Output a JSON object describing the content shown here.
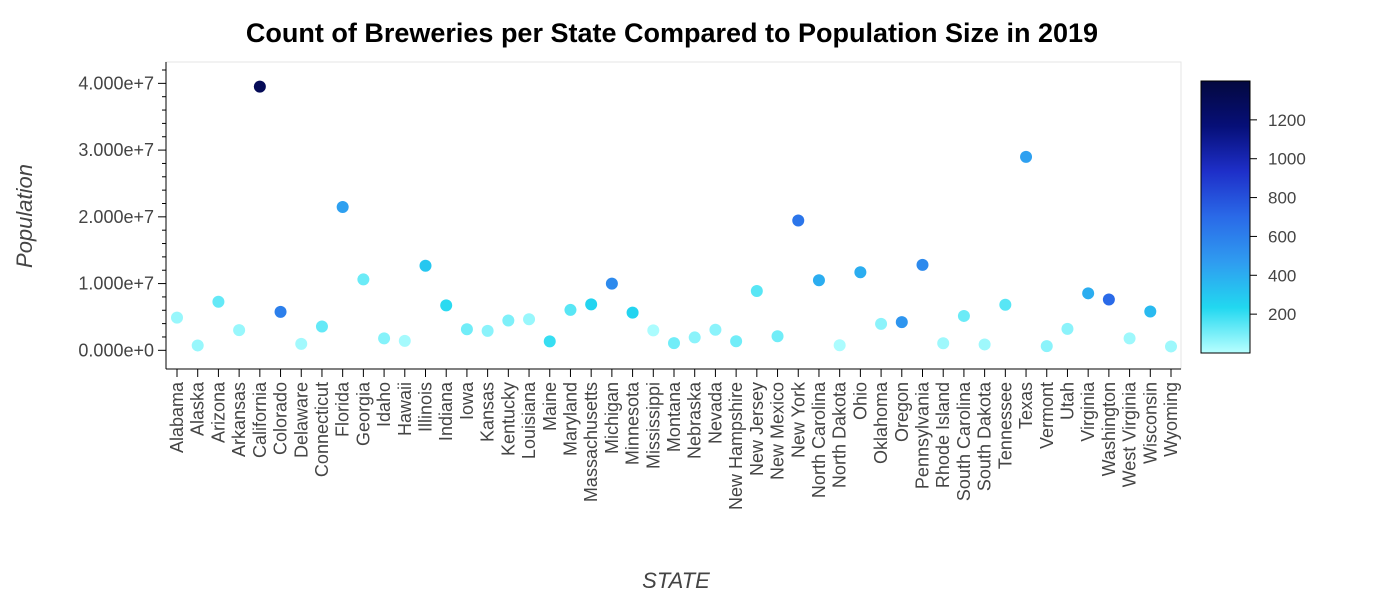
{
  "chart_data": {
    "type": "scatter",
    "title": "Count of Breweries per State Compared to Population Size in 2019",
    "xlabel": "STATE",
    "ylabel": "Population",
    "ylim": [
      -2800000,
      43200000
    ],
    "yticks": [
      "0.000e+0",
      "1.000e+7",
      "2.000e+7",
      "3.000e+7",
      "4.000e+7"
    ],
    "yticks_values": [
      0,
      10000000,
      20000000,
      30000000,
      40000000
    ],
    "colorbar": {
      "range": [
        0,
        1400
      ],
      "ticks": [
        "200",
        "400",
        "600",
        "800",
        "1000",
        "1200"
      ],
      "ticks_values": [
        200,
        400,
        600,
        800,
        1000,
        1200
      ],
      "colors": [
        "#b8ffff",
        "#22d8f0",
        "#2f9cf0",
        "#2a6ae8",
        "#1e2fc9",
        "#060f78",
        "#04083f"
      ]
    },
    "points": [
      {
        "state": "Alabama",
        "population": 4900000,
        "breweries": 50
      },
      {
        "state": "Alaska",
        "population": 730000,
        "breweries": 50
      },
      {
        "state": "Arizona",
        "population": 7280000,
        "breweries": 130
      },
      {
        "state": "Arkansas",
        "population": 3020000,
        "breweries": 50
      },
      {
        "state": "California",
        "population": 39510000,
        "breweries": 1300
      },
      {
        "state": "Colorado",
        "population": 5760000,
        "breweries": 600
      },
      {
        "state": "Delaware",
        "population": 970000,
        "breweries": 35
      },
      {
        "state": "Connecticut",
        "population": 3570000,
        "breweries": 130
      },
      {
        "state": "Florida",
        "population": 21480000,
        "breweries": 450
      },
      {
        "state": "Georgia",
        "population": 10620000,
        "breweries": 120
      },
      {
        "state": "Idaho",
        "population": 1790000,
        "breweries": 80
      },
      {
        "state": "Hawaii",
        "population": 1420000,
        "breweries": 30
      },
      {
        "state": "Illinois",
        "population": 12670000,
        "breweries": 300
      },
      {
        "state": "Indiana",
        "population": 6730000,
        "breweries": 220
      },
      {
        "state": "Iowa",
        "population": 3160000,
        "breweries": 110
      },
      {
        "state": "Kansas",
        "population": 2910000,
        "breweries": 70
      },
      {
        "state": "Kentucky",
        "population": 4470000,
        "breweries": 90
      },
      {
        "state": "Louisiana",
        "population": 4650000,
        "breweries": 50
      },
      {
        "state": "Maine",
        "population": 1340000,
        "breweries": 200
      },
      {
        "state": "Maryland",
        "population": 6050000,
        "breweries": 150
      },
      {
        "state": "Massachusetts",
        "population": 6890000,
        "breweries": 250
      },
      {
        "state": "Michigan",
        "population": 9990000,
        "breweries": 550
      },
      {
        "state": "Minnesota",
        "population": 5640000,
        "breweries": 250
      },
      {
        "state": "Mississippi",
        "population": 2980000,
        "breweries": 20
      },
      {
        "state": "Montana",
        "population": 1070000,
        "breweries": 110
      },
      {
        "state": "Nebraska",
        "population": 1930000,
        "breweries": 70
      },
      {
        "state": "Nevada",
        "population": 3080000,
        "breweries": 70
      },
      {
        "state": "New Hampshire",
        "population": 1360000,
        "breweries": 110
      },
      {
        "state": "New Jersey",
        "population": 8880000,
        "breweries": 150
      },
      {
        "state": "New Mexico",
        "population": 2100000,
        "breweries": 110
      },
      {
        "state": "New York",
        "population": 19450000,
        "breweries": 650
      },
      {
        "state": "North Carolina",
        "population": 10490000,
        "breweries": 400
      },
      {
        "state": "North Dakota",
        "population": 760000,
        "breweries": 20
      },
      {
        "state": "Ohio",
        "population": 11690000,
        "breweries": 400
      },
      {
        "state": "Oklahoma",
        "population": 3960000,
        "breweries": 70
      },
      {
        "state": "Oregon",
        "population": 4220000,
        "breweries": 500
      },
      {
        "state": "Pennsylvania",
        "population": 12800000,
        "breweries": 550
      },
      {
        "state": "Rhode Island",
        "population": 1060000,
        "breweries": 40
      },
      {
        "state": "South Carolina",
        "population": 5150000,
        "breweries": 120
      },
      {
        "state": "South Dakota",
        "population": 880000,
        "breweries": 40
      },
      {
        "state": "Tennessee",
        "population": 6830000,
        "breweries": 150
      },
      {
        "state": "Texas",
        "population": 28990000,
        "breweries": 450
      },
      {
        "state": "Vermont",
        "population": 620000,
        "breweries": 70
      },
      {
        "state": "Utah",
        "population": 3210000,
        "breweries": 70
      },
      {
        "state": "Virginia",
        "population": 8540000,
        "breweries": 400
      },
      {
        "state": "Washington",
        "population": 7610000,
        "breweries": 700
      },
      {
        "state": "West Virginia",
        "population": 1790000,
        "breweries": 40
      },
      {
        "state": "Wisconsin",
        "population": 5820000,
        "breweries": 350
      },
      {
        "state": "Wyoming",
        "population": 580000,
        "breweries": 40
      }
    ]
  }
}
